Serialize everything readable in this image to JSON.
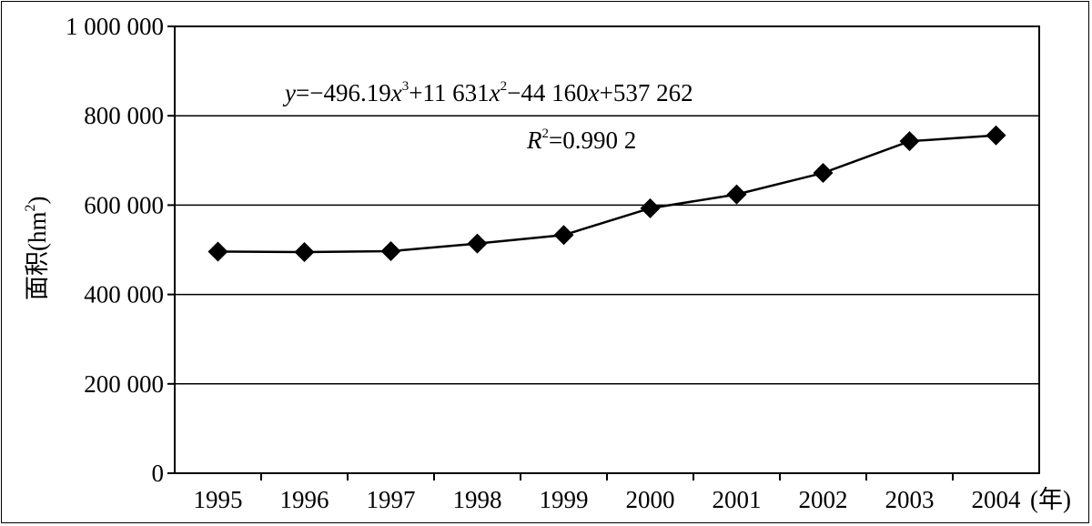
{
  "chart_data": {
    "type": "line",
    "x": [
      "1995",
      "1996",
      "1997",
      "1998",
      "1999",
      "2000",
      "2001",
      "2002",
      "2003",
      "2004"
    ],
    "series": [
      {
        "values": [
          496000,
          495000,
          497000,
          514000,
          533000,
          593000,
          624000,
          672000,
          743000,
          756000
        ],
        "marker": "diamond",
        "color": "#000000"
      }
    ],
    "ylabel": "面积(hm²)",
    "ylabel_text": "面积(hm",
    "ylabel_sup": "2",
    "ylabel_close": ")",
    "xunit": "(年)",
    "ylim": [
      0,
      1000000
    ],
    "yticks": [
      0,
      200000,
      400000,
      600000,
      800000,
      1000000
    ],
    "ytick_labels": [
      "0",
      "200 000",
      "400 000",
      "600 000",
      "800 000",
      "1 000 000"
    ],
    "grid": true,
    "annotations": {
      "equation": {
        "y": "y",
        "eq": "=−496.19",
        "x1": "x",
        "exp3": "3",
        "c2": "+11 631",
        "x2": "x",
        "exp2": "2",
        "c1": "−44 160",
        "x3": "x",
        "c0": "+537 262"
      },
      "r2": {
        "R": "R",
        "exp": "2",
        "value": "=0.990 2"
      }
    }
  }
}
